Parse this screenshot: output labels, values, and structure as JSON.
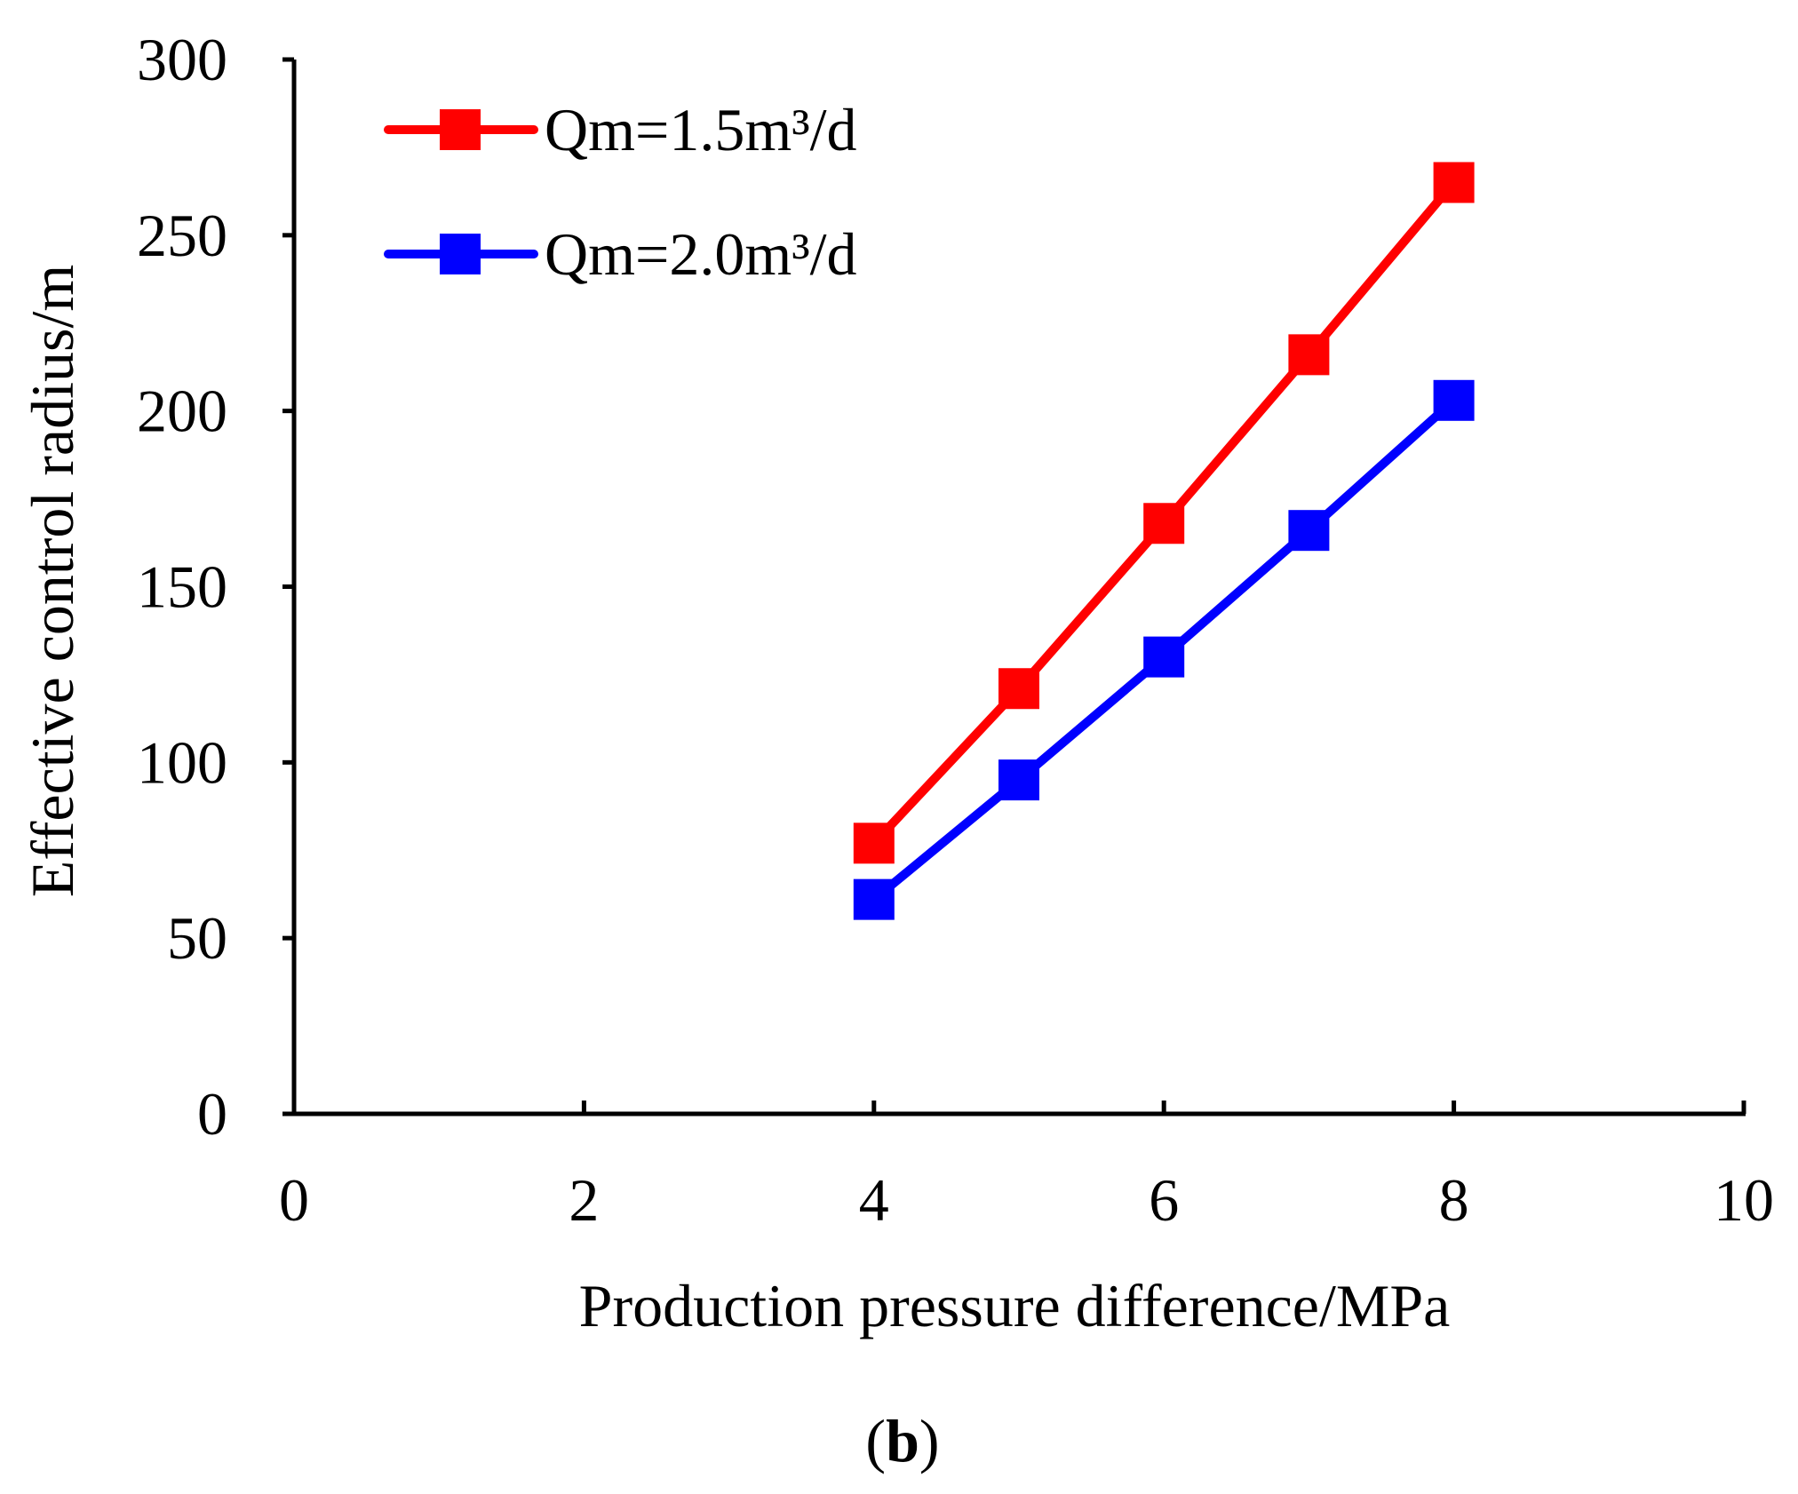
{
  "chart_data": {
    "type": "line",
    "title": "",
    "xlabel": "Production pressure difference/MPa",
    "ylabel": "Effective control radius/m",
    "xlim": [
      0,
      10
    ],
    "ylim": [
      0,
      300
    ],
    "xticks": [
      0,
      2,
      4,
      6,
      8,
      10
    ],
    "yticks": [
      0,
      50,
      100,
      150,
      200,
      250,
      300
    ],
    "grid": false,
    "legend_position": "top-left",
    "panel_label": {
      "open": "(",
      "letter": "b",
      "close": ")"
    },
    "series": [
      {
        "name": "Qm=1.5m³/d",
        "color": "#ff0000",
        "marker": "square",
        "x": [
          4,
          5,
          6,
          7,
          8
        ],
        "y": [
          77,
          121,
          168,
          216,
          265
        ]
      },
      {
        "name": "Qm=2.0m³/d",
        "color": "#0000ff",
        "marker": "square",
        "x": [
          4,
          5,
          6,
          7,
          8
        ],
        "y": [
          61,
          95,
          130,
          166,
          203
        ]
      }
    ]
  }
}
